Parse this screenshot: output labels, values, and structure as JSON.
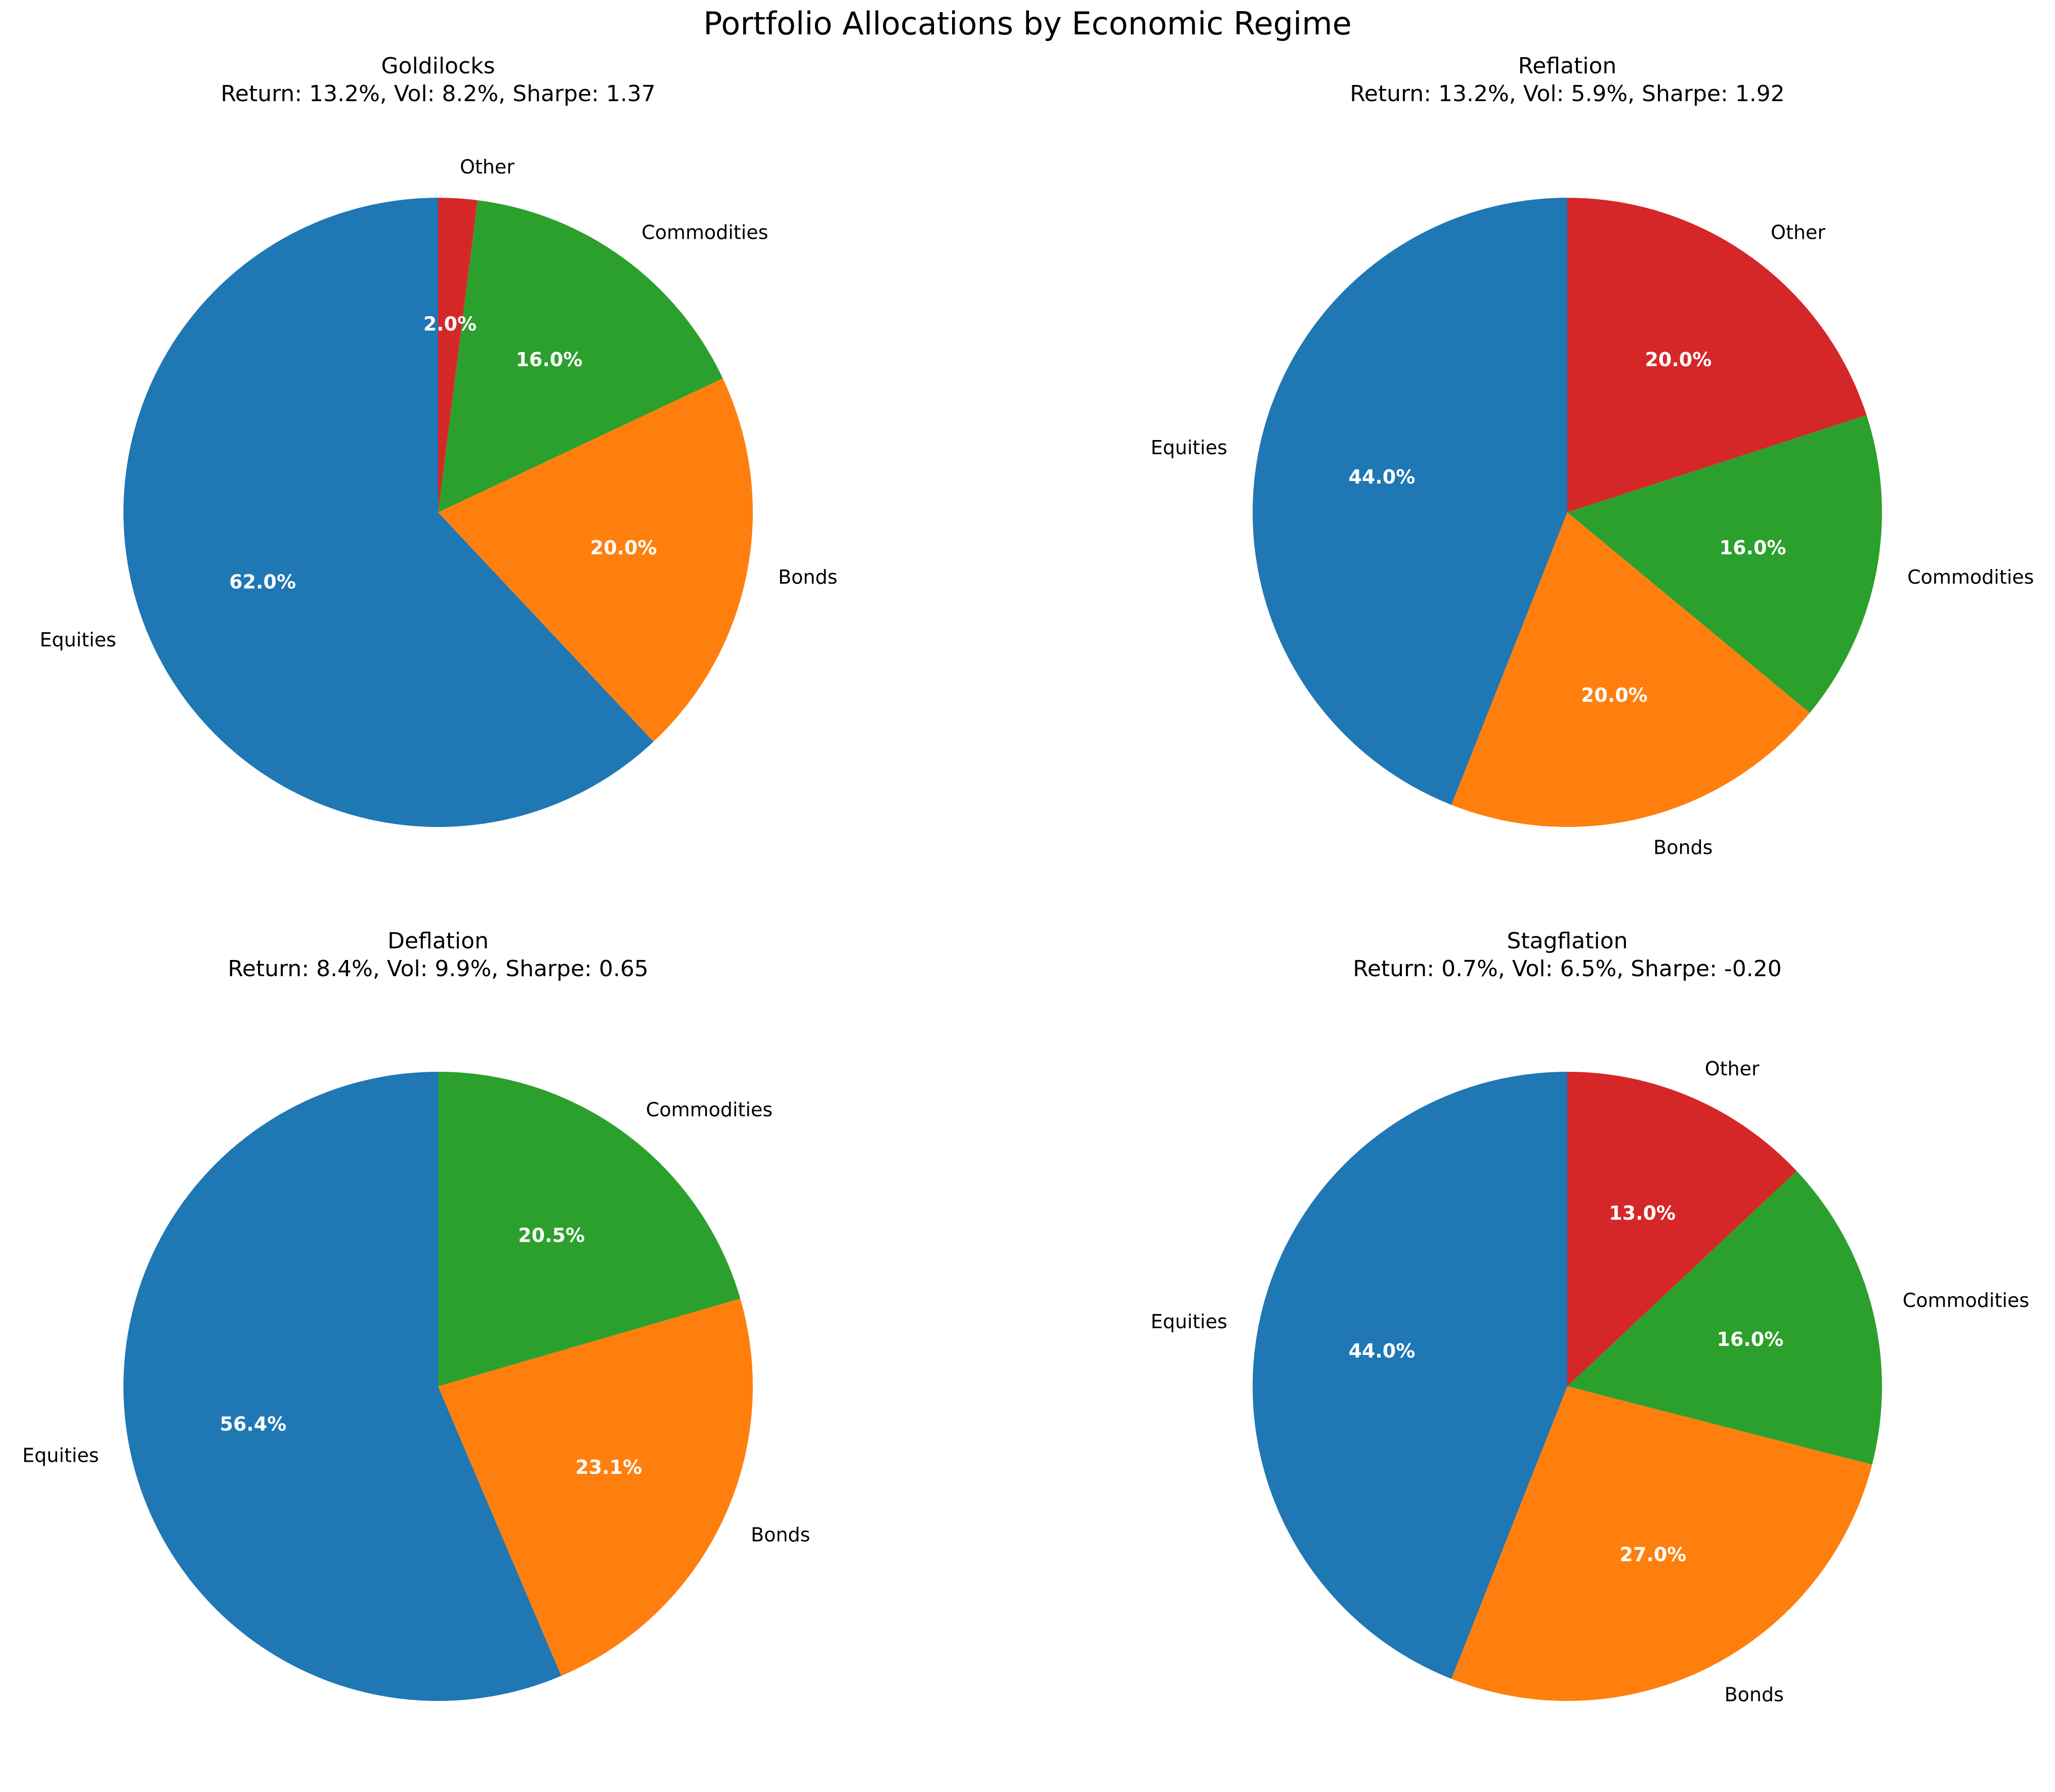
{
  "title": "Portfolio Allocations by Economic Regime",
  "colors": {
    "Equities": "#1f77b4",
    "Bonds": "#ff7f0e",
    "Commodities": "#2ca02c",
    "Other": "#d62728"
  },
  "chart_data": [
    {
      "type": "pie",
      "title": "Goldilocks",
      "subtitle": "Return: 13.2%, Vol: 8.2%, Sharpe: 1.37",
      "labels": [
        "Equities",
        "Bonds",
        "Commodities",
        "Other"
      ],
      "values": [
        62.0,
        20.0,
        16.0,
        2.0
      ],
      "pct_labels": [
        "62.0%",
        "20.0%",
        "16.0%",
        "2.0%"
      ],
      "start_angle": 90,
      "direction": "counterclockwise"
    },
    {
      "type": "pie",
      "title": "Reflation",
      "subtitle": "Return: 13.2%, Vol: 5.9%, Sharpe: 1.92",
      "labels": [
        "Equities",
        "Bonds",
        "Commodities",
        "Other"
      ],
      "values": [
        44.0,
        20.0,
        16.0,
        20.0
      ],
      "pct_labels": [
        "44.0%",
        "20.0%",
        "16.0%",
        "20.0%"
      ],
      "start_angle": 90,
      "direction": "counterclockwise"
    },
    {
      "type": "pie",
      "title": "Deflation",
      "subtitle": "Return: 8.4%, Vol: 9.9%, Sharpe: 0.65",
      "labels": [
        "Equities",
        "Bonds",
        "Commodities"
      ],
      "values": [
        56.4,
        23.1,
        20.5
      ],
      "pct_labels": [
        "56.4%",
        "23.1%",
        "20.5%"
      ],
      "start_angle": 90,
      "direction": "counterclockwise"
    },
    {
      "type": "pie",
      "title": "Stagflation",
      "subtitle": "Return: 0.7%, Vol: 6.5%, Sharpe: -0.20",
      "labels": [
        "Equities",
        "Bonds",
        "Commodities",
        "Other"
      ],
      "values": [
        44.0,
        27.0,
        16.0,
        13.0
      ],
      "pct_labels": [
        "44.0%",
        "27.0%",
        "16.0%",
        "13.0%"
      ],
      "start_angle": 90,
      "direction": "counterclockwise"
    }
  ]
}
